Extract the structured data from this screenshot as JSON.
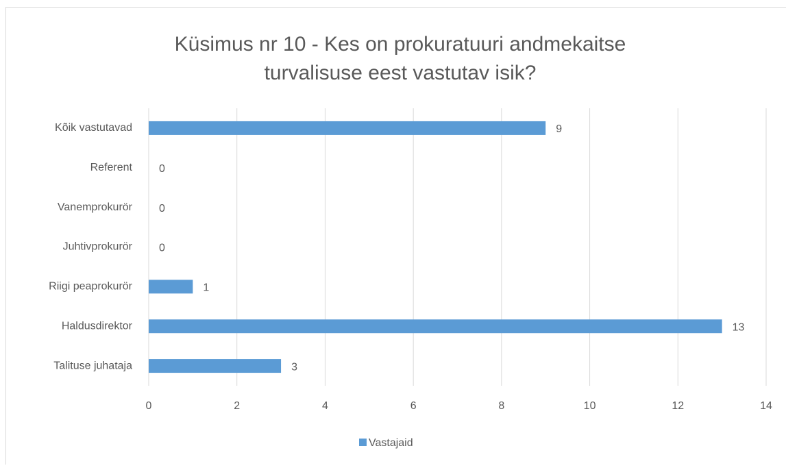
{
  "chart_data": {
    "type": "bar",
    "orientation": "horizontal",
    "title": [
      "Küsimus nr 10 - Kes on prokuratuuri andmekaitse",
      "turvalisuse eest vastutav isik?"
    ],
    "categories": [
      "Kõik vastutavad",
      "Referent",
      "Vanemprokurör",
      "Juhtivprokurör",
      "Riigi peaprokurör",
      "Haldusdirektor",
      "Talituse juhataja"
    ],
    "series": [
      {
        "name": "Vastajaid",
        "color": "#5b9bd5",
        "values": [
          9,
          0,
          0,
          0,
          1,
          13,
          3
        ]
      }
    ],
    "xlim": [
      0,
      14
    ],
    "xticks": [
      0,
      2,
      4,
      6,
      8,
      10,
      12,
      14
    ],
    "grid": true,
    "legend": "bottom"
  }
}
